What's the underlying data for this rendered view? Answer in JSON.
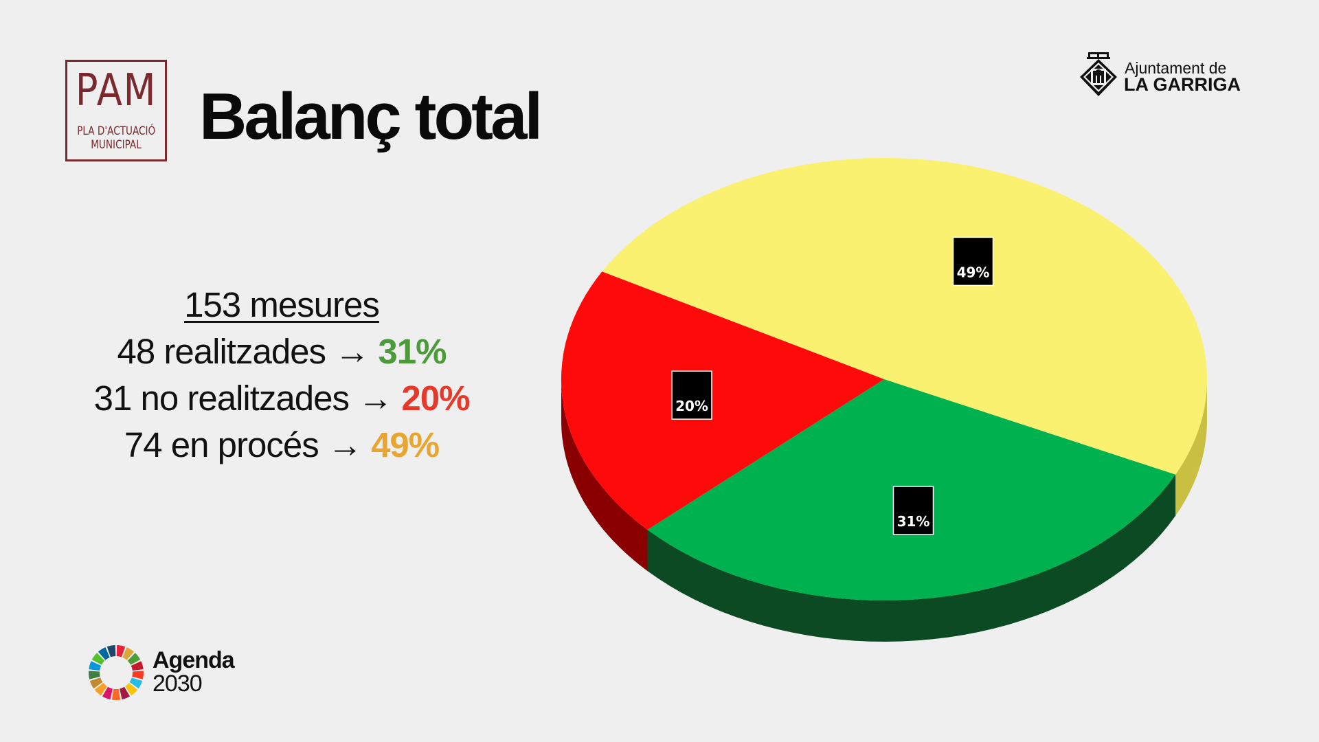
{
  "pam_logo": {
    "main": "PAM",
    "sub_line1": "PLA D'ACTUACIÓ",
    "sub_line2": "MUNICIPAL",
    "color": "#7a2a2e"
  },
  "title": "Balanç total",
  "ajuntament": {
    "line1": "Ajuntament de",
    "line2": "LA GARRIGA",
    "icon": "municipal-crest-icon"
  },
  "summary": {
    "total": "153 mesures",
    "rows": [
      {
        "text": "48 realitzades → ",
        "pct": "31%",
        "color": "#4c9a3a"
      },
      {
        "text": "31 no realitzades → ",
        "pct": "20%",
        "color": "#e5392c"
      },
      {
        "text": "74 en procés → ",
        "pct": "49%",
        "color": "#e9a531"
      }
    ]
  },
  "agenda": {
    "line1": "Agenda",
    "line2": "2030",
    "icon": "sdg-wheel-icon"
  },
  "chart_data": {
    "type": "pie",
    "style": "3d",
    "categories": [
      "en procés",
      "realitzades",
      "no realitzades"
    ],
    "values": [
      49,
      31,
      20
    ],
    "labels": [
      "49%",
      "31%",
      "20%"
    ],
    "colors": [
      "#fbf170",
      "#00b24f",
      "#ff0a0a"
    ],
    "side_colors": [
      "#c9bf40",
      "#0b4a22",
      "#8a0000"
    ],
    "legend": "none",
    "title": ""
  }
}
